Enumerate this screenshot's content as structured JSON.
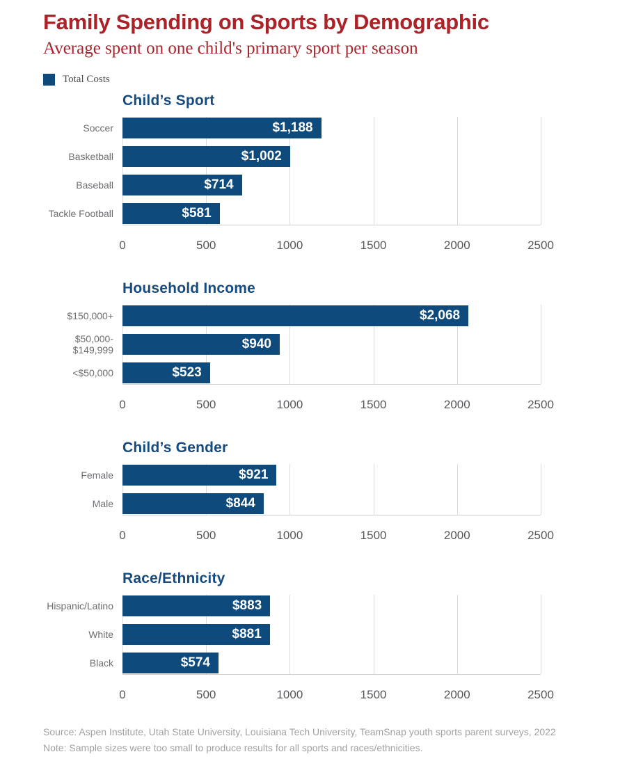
{
  "page": {
    "title": "Family Spending on Sports by Demographic",
    "subtitle": "Average spent on one child's primary sport per season",
    "legend": {
      "label": "Total Costs",
      "swatch_color": "#0e4a7c"
    },
    "source": "Source: Aspen Institute, Utah State University, Louisiana Tech University, TeamSnap youth sports parent surveys, 2022",
    "note": "Note: Sample sizes were too small to produce results for all sports and races/ethnicities."
  },
  "colors": {
    "bar": "#0e4a7c",
    "title_red": "#ab2329",
    "subtitle_red": "#a7262c",
    "heading_navy": "#174b7e",
    "category_gray": "#6d6e71",
    "tick_gray": "#57585b",
    "gridline": "#dcdcdc",
    "footer_gray": "#a0a1a3",
    "bar_value_text": "#ffffff"
  },
  "axis": {
    "ticks": [
      0,
      500,
      1000,
      1500,
      2000,
      2500
    ],
    "max": 2500
  },
  "chart_data": [
    {
      "type": "bar",
      "title": "Child’s Sport",
      "categories": [
        "Soccer",
        "Basketball",
        "Baseball",
        "Tackle Football"
      ],
      "values": [
        1188,
        1002,
        714,
        581
      ],
      "value_labels": [
        "$1,188",
        "$1,002",
        "$714",
        "$581"
      ],
      "xlabel": "",
      "ylabel": "",
      "xlim": [
        0,
        2500
      ],
      "orientation": "horizontal",
      "grid": true,
      "legend_position": "top-left-of-page"
    },
    {
      "type": "bar",
      "title": "Household Income",
      "categories": [
        "$150,000+",
        "$50,000-\n$149,999",
        "<$50,000"
      ],
      "values": [
        2068,
        940,
        523
      ],
      "value_labels": [
        "$2,068",
        "$940",
        "$523"
      ],
      "xlabel": "",
      "ylabel": "",
      "xlim": [
        0,
        2500
      ],
      "orientation": "horizontal",
      "grid": true
    },
    {
      "type": "bar",
      "title": "Child’s Gender",
      "categories": [
        "Female",
        "Male"
      ],
      "values": [
        921,
        844
      ],
      "value_labels": [
        "$921",
        "$844"
      ],
      "xlabel": "",
      "ylabel": "",
      "xlim": [
        0,
        2500
      ],
      "orientation": "horizontal",
      "grid": true
    },
    {
      "type": "bar",
      "title": "Race/Ethnicity",
      "categories": [
        "Hispanic/Latino",
        "White",
        "Black"
      ],
      "values": [
        883,
        881,
        574
      ],
      "value_labels": [
        "$883",
        "$881",
        "$574"
      ],
      "xlabel": "",
      "ylabel": "",
      "xlim": [
        0,
        2500
      ],
      "orientation": "horizontal",
      "grid": true
    }
  ]
}
